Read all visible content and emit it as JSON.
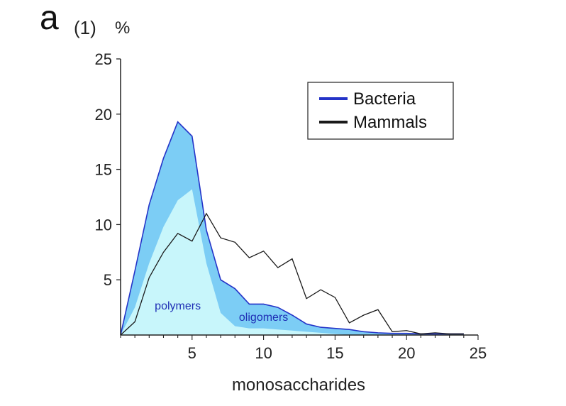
{
  "panel": {
    "letter": "a",
    "sub": "(1)",
    "unit": "%"
  },
  "chart_data": {
    "type": "area",
    "title": "",
    "xlabel": "monosaccharides",
    "ylabel": "%",
    "xlim": [
      0,
      25
    ],
    "ylim": [
      0,
      25
    ],
    "xticks": [
      5,
      10,
      15,
      20,
      25
    ],
    "yticks": [
      5,
      10,
      15,
      20,
      25
    ],
    "grid": false,
    "legend_position": "top-right",
    "colors": {
      "bacteria_line": "#2433c8",
      "bacteria_fill": "#7ccdf5",
      "inner_fill": "#c8f6fb",
      "mammals_line": "#1a1a1a"
    },
    "series": [
      {
        "name": "Bacteria",
        "kind": "filled-area",
        "x": [
          0,
          1,
          2,
          3,
          4,
          5,
          6,
          7,
          8,
          9,
          10,
          11,
          12,
          13,
          14,
          15,
          16,
          17,
          18,
          19,
          20,
          21,
          22,
          23,
          24
        ],
        "values": [
          0,
          5.8,
          11.8,
          16,
          19.3,
          18,
          9.5,
          5,
          4.2,
          2.8,
          2.8,
          2.5,
          1.8,
          1.0,
          0.7,
          0.6,
          0.5,
          0.3,
          0.2,
          0.15,
          0.15,
          0.1,
          0.1,
          0.1,
          0.1
        ]
      },
      {
        "name": "Mammals",
        "kind": "line",
        "x": [
          0,
          1,
          2,
          3,
          4,
          5,
          6,
          7,
          8,
          9,
          10,
          11,
          12,
          13,
          14,
          15,
          16,
          17,
          18,
          19,
          20,
          21,
          22,
          23,
          24
        ],
        "values": [
          0,
          1.2,
          5.2,
          7.5,
          9.2,
          8.5,
          11.0,
          8.8,
          8.4,
          7.0,
          7.6,
          6.1,
          6.9,
          3.3,
          4.1,
          3.4,
          1.1,
          1.8,
          2.3,
          0.3,
          0.4,
          0.1,
          0.2,
          0.1,
          0.1
        ]
      }
    ],
    "inner_region": {
      "x": [
        0,
        1,
        2,
        3,
        4,
        5,
        6,
        7,
        8,
        9,
        10,
        11,
        12,
        13,
        14,
        15,
        16
      ],
      "values": [
        0,
        2.5,
        6.5,
        9.8,
        12.2,
        13.2,
        6.5,
        2.0,
        0.8,
        0.6,
        0.6,
        0.5,
        0.4,
        0.3,
        0.2,
        0.1,
        0
      ]
    },
    "annotations": [
      {
        "text": "polymers",
        "x": 4,
        "y": 2.3
      },
      {
        "text": "oligomers",
        "x": 10,
        "y": 1.3
      }
    ]
  }
}
